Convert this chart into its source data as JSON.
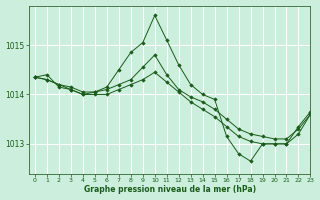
{
  "title": "Graphe pression niveau de la mer (hPa)",
  "background_color": "#cceedd",
  "grid_color": "#ffffff",
  "line_color": "#1a5c1a",
  "marker_color": "#1a5c1a",
  "xlim": [
    -0.5,
    23
  ],
  "ylim": [
    1012.4,
    1015.8
  ],
  "yticks": [
    1013,
    1014,
    1015
  ],
  "xticks": [
    0,
    1,
    2,
    3,
    4,
    5,
    6,
    7,
    8,
    9,
    10,
    11,
    12,
    13,
    14,
    15,
    16,
    17,
    18,
    19,
    20,
    21,
    22,
    23
  ],
  "series": [
    [
      1014.35,
      1014.4,
      1014.15,
      1014.1,
      1014.0,
      1014.05,
      1014.15,
      1014.5,
      1014.85,
      1015.05,
      1015.6,
      1015.1,
      1014.6,
      1014.2,
      1014.0,
      1013.9,
      1013.15,
      1012.8,
      1012.65,
      1013.0,
      1013.0,
      1013.0,
      1013.35,
      1013.65
    ],
    [
      1014.35,
      1014.3,
      1014.2,
      1014.15,
      1014.05,
      1014.05,
      1014.1,
      1014.2,
      1014.3,
      1014.55,
      1014.8,
      1014.4,
      1014.1,
      1013.95,
      1013.85,
      1013.7,
      1013.5,
      1013.3,
      1013.2,
      1013.15,
      1013.1,
      1013.1,
      1013.3,
      1013.6
    ],
    [
      1014.35,
      1014.3,
      1014.2,
      1014.1,
      1014.0,
      1014.0,
      1014.0,
      1014.1,
      1014.2,
      1014.3,
      1014.45,
      1014.25,
      1014.05,
      1013.85,
      1013.7,
      1013.55,
      1013.35,
      1013.15,
      1013.05,
      1013.0,
      1013.0,
      1013.0,
      1013.2,
      1013.6
    ]
  ]
}
